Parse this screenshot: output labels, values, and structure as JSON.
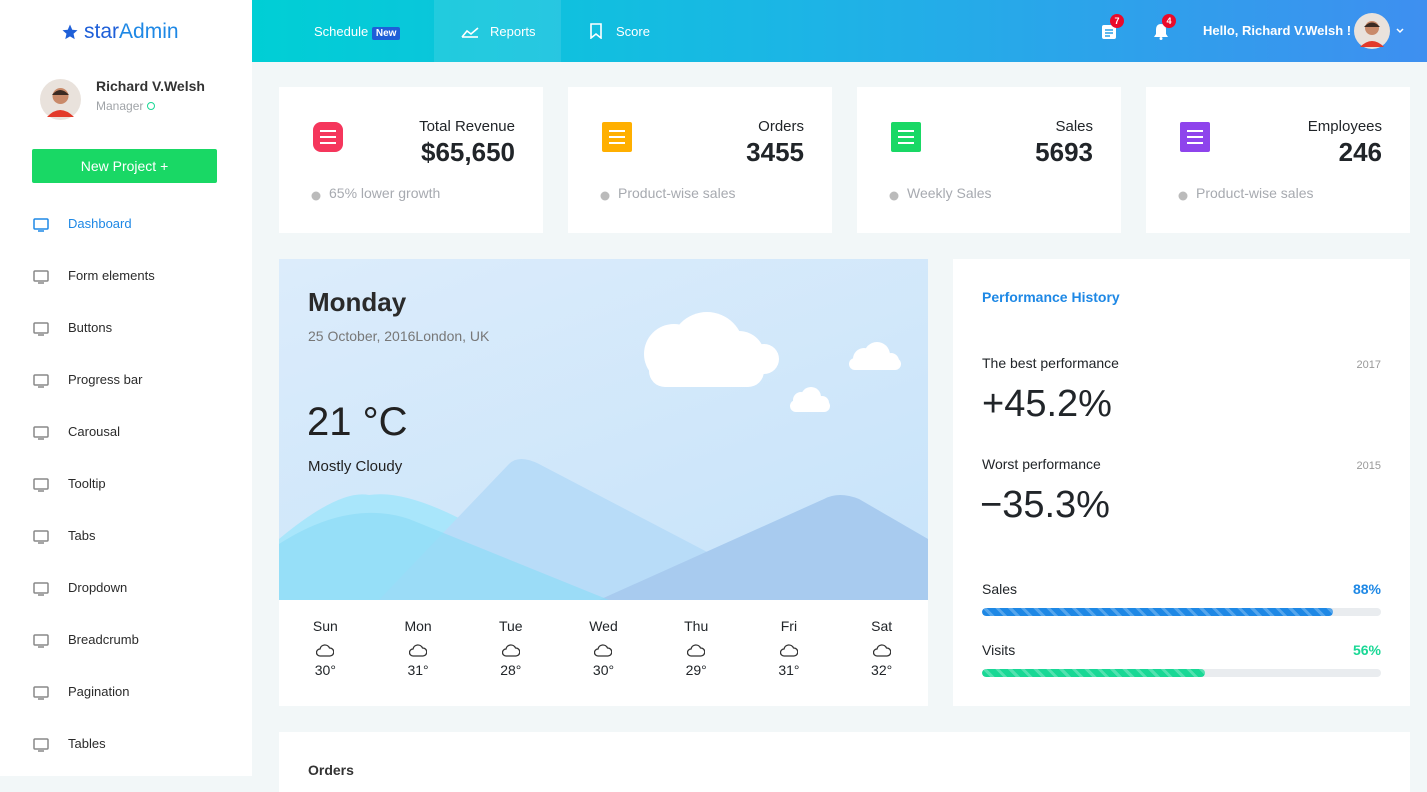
{
  "brand": {
    "prefix": "star",
    "suffix": "Admin"
  },
  "user": {
    "name": "Richard V.Welsh",
    "role": "Manager"
  },
  "sidebar": {
    "button": "New Project",
    "menu": [
      "Dashboard",
      "Form elements",
      "Buttons",
      "Progress bar",
      "Carousal",
      "Tooltip",
      "Tabs",
      "Dropdown",
      "Breadcrumb",
      "Pagination",
      "Tables"
    ]
  },
  "topnav": {
    "tabs": [
      {
        "label": "Schedule",
        "badge": "New"
      },
      {
        "label": "Reports"
      },
      {
        "label": "Score"
      }
    ],
    "notifications": [
      "7",
      "4"
    ],
    "greeting": "Hello, Richard V.Welsh !"
  },
  "stats": [
    {
      "title": "Total Revenue",
      "value": "$65,650",
      "note": "65% lower growth"
    },
    {
      "title": "Orders",
      "value": "3455",
      "note": "Product-wise sales"
    },
    {
      "title": "Sales",
      "value": "5693",
      "note": "Weekly Sales"
    },
    {
      "title": "Employees",
      "value": "246",
      "note": "Product-wise sales"
    }
  ],
  "weather": {
    "day": "Monday",
    "date": "25 October, 2016",
    "location": "London, UK",
    "temperature": "21 °C",
    "condition": "Mostly Cloudy",
    "forecast": [
      {
        "day": "Sun",
        "temp": "30°"
      },
      {
        "day": "Mon",
        "temp": "31°"
      },
      {
        "day": "Tue",
        "temp": "28°"
      },
      {
        "day": "Wed",
        "temp": "30°"
      },
      {
        "day": "Thu",
        "temp": "29°"
      },
      {
        "day": "Fri",
        "temp": "31°"
      },
      {
        "day": "Sat",
        "temp": "32°"
      }
    ]
  },
  "performance": {
    "title": "Performance History",
    "best": {
      "label": "The best performance",
      "year": "2017",
      "value": "+45.2%"
    },
    "worst": {
      "label": "Worst performance",
      "year": "2015",
      "value": "−35.3%"
    },
    "progress": [
      {
        "name": "Sales",
        "value": 88,
        "label": "88%",
        "color": "#1e88e5"
      },
      {
        "name": "Visits",
        "value": 56,
        "label": "56%",
        "color": "#19d895"
      }
    ]
  },
  "orders": {
    "title": "Orders"
  }
}
